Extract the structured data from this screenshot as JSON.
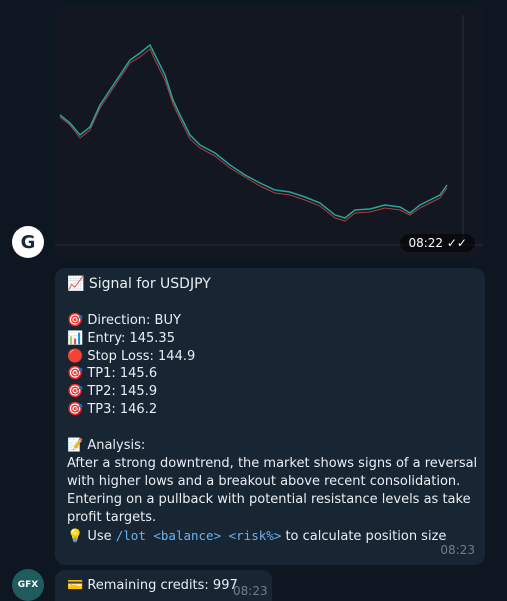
{
  "messages": [
    {
      "avatar": "G",
      "time": "08:22"
    },
    {
      "title": "📈 Signal for USDJPY",
      "direction": "🎯 Direction: BUY",
      "entry": "📊 Entry: 145.35",
      "stop_loss": "🔴 Stop Loss: 144.9",
      "tp1": "🎯 TP1: 145.6",
      "tp2": "🎯 TP2: 145.9",
      "tp3": "🎯 TP3: 146.2",
      "analysis_heading": "📝 Analysis:",
      "analysis": "After a strong downtrend, the market shows signs of a reversal with higher lows and a breakout above recent consolidation. Entering on a pullback with potential resistance levels as take profit targets.",
      "usage": {
        "prefix": "💡 Use ",
        "command": "/lot <balance> <risk%>",
        "suffix": " to calculate position size"
      },
      "time": "08:23"
    },
    {
      "avatar": "GFX",
      "text": "💳 Remaining credits: 997",
      "time": "08:23"
    }
  ]
}
